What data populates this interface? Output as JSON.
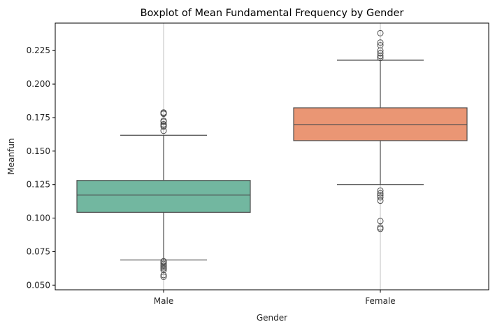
{
  "chart_data": {
    "type": "boxplot",
    "title": "Boxplot of Mean Fundamental Frequency by Gender",
    "xlabel": "Gender",
    "ylabel": "Meanfun",
    "categories": [
      "Male",
      "Female"
    ],
    "ylim": [
      0.0465,
      0.2455
    ],
    "yticks": [
      0.05,
      0.075,
      0.1,
      0.125,
      0.15,
      0.175,
      0.2,
      0.225
    ],
    "ytick_labels": [
      "0.050",
      "0.075",
      "0.100",
      "0.125",
      "0.150",
      "0.175",
      "0.200",
      "0.225"
    ],
    "x_grid": true,
    "boxes": [
      {
        "category": "Male",
        "color": "#72b7a0",
        "whisker_low": 0.0688,
        "q1": 0.1043,
        "median": 0.1172,
        "q3": 0.1281,
        "whisker_high": 0.1618,
        "outliers": [
          0.1788,
          0.1781,
          0.1778,
          0.1727,
          0.172,
          0.17,
          0.169,
          0.1683,
          0.1652,
          0.0678,
          0.0669,
          0.0658,
          0.0645,
          0.0635,
          0.0625,
          0.0612,
          0.0575,
          0.0562
        ]
      },
      {
        "category": "Female",
        "color": "#ea9674",
        "whisker_low": 0.125,
        "q1": 0.1578,
        "median": 0.1698,
        "q3": 0.1823,
        "whisker_high": 0.2178,
        "outliers": [
          0.238,
          0.231,
          0.229,
          0.225,
          0.223,
          0.221,
          0.2195,
          0.1205,
          0.1185,
          0.117,
          0.1155,
          0.113,
          0.0978,
          0.093,
          0.092
        ]
      }
    ]
  }
}
